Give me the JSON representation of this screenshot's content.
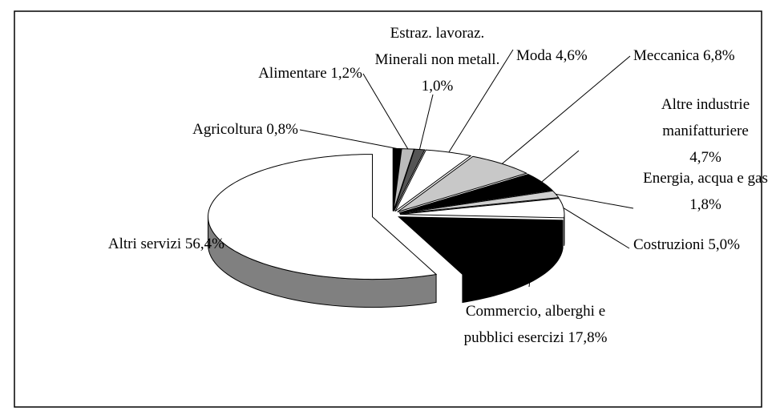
{
  "chart_data": {
    "type": "pie",
    "categories": [
      "Agricoltura",
      "Alimentare",
      "Estraz. lavoraz. Minerali non metall.",
      "Moda",
      "Meccanica",
      "Altre industrie manifatturiere",
      "Energia, acqua e gas",
      "Costruzioni",
      "Commercio, alberghi e pubblici esercizi",
      "Altri servizi"
    ],
    "values": [
      0.8,
      1.2,
      1.0,
      4.6,
      6.8,
      4.7,
      1.8,
      5.0,
      17.8,
      56.4
    ],
    "value_labels": [
      "0,8%",
      "1,2%",
      "1,0%",
      "4,6%",
      "6,8%",
      "4,7%",
      "1,8%",
      "5,0%",
      "17,8%",
      "56,4%"
    ],
    "colors": [
      "#000000",
      "#bbbbbb",
      "#555555",
      "#ffffff",
      "#c8c8c8",
      "#000000",
      "#d0d0d0",
      "#ffffff",
      "#000000",
      "#ffffff"
    ]
  }
}
